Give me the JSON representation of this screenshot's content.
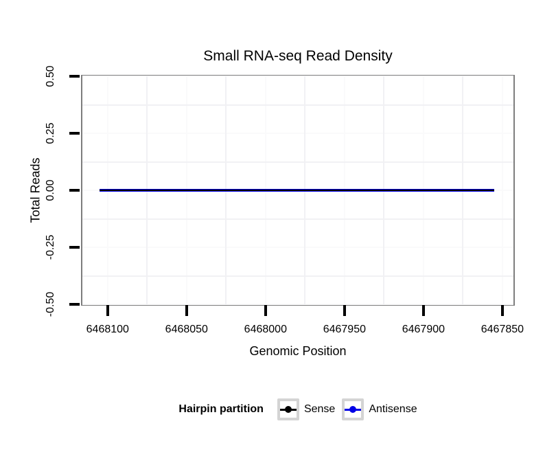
{
  "chart_data": {
    "type": "line",
    "title": "Small RNA-seq Read Density",
    "xlabel": "Genomic Position",
    "ylabel": "Total Reads",
    "x_ticks": [
      6468100,
      6468050,
      6468000,
      6467950,
      6467900,
      6467850
    ],
    "x_tick_labels": [
      "6468100",
      "6468050",
      "6468000",
      "6467950",
      "6467900",
      "6467850"
    ],
    "y_ticks": [
      0.5,
      0.25,
      0.0,
      -0.25,
      -0.5
    ],
    "y_tick_labels": [
      "0.50",
      "0.25",
      "0.00",
      "-0.25",
      "-0.50"
    ],
    "xlim": [
      6468116,
      6467843
    ],
    "ylim": [
      -0.5,
      0.5
    ],
    "x_axis_reversed": true,
    "grid": true,
    "series": [
      {
        "name": "Sense",
        "color": "#000000",
        "x": [
          6468105,
          6467855
        ],
        "y": [
          0,
          0
        ]
      },
      {
        "name": "Antisense",
        "color": "#0000e6",
        "x": [
          6468105,
          6467855
        ],
        "y": [
          0,
          0
        ]
      }
    ],
    "legend": {
      "title": "Hairpin partition",
      "position": "bottom",
      "items": [
        {
          "label": "Sense",
          "color": "#000000"
        },
        {
          "label": "Antisense",
          "color": "#0000e6"
        }
      ]
    },
    "colors": {
      "panel_border": "#7d7d7d",
      "axis_tick": "#000000",
      "grid_minor": "#f1f1f4",
      "grid_major": "#fafafb",
      "legend_key_border": "#d4d4d4",
      "background": "#ffffff"
    }
  }
}
